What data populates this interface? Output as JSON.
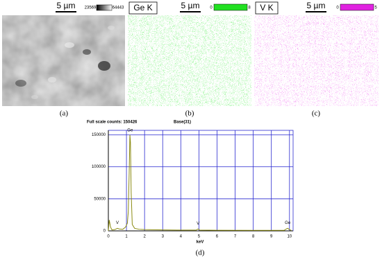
{
  "panels": [
    {
      "label": "(a)",
      "scale": "5 µm",
      "colorbar": [
        23569,
        64443
      ]
    },
    {
      "label": "(b)",
      "element": "Ge K",
      "scale": "5 µm",
      "colorbar": [
        0,
        8
      ]
    },
    {
      "label": "(c)",
      "element": "V K",
      "scale": "5 µm",
      "colorbar": [
        0,
        5
      ]
    }
  ],
  "chart_data": {
    "type": "line",
    "header_left": "Full scale counts: 150426",
    "header_right": "Base(31)",
    "x_label": "keV",
    "label": "(d)",
    "color": "#8a8a10",
    "x": [
      0,
      0.05,
      0.12,
      0.2,
      0.35,
      0.5,
      0.6,
      0.8,
      0.95,
      1.05,
      1.1,
      1.15,
      1.19,
      1.22,
      1.26,
      1.32,
      1.45,
      1.7,
      2,
      3,
      4,
      4.85,
      4.95,
      5.05,
      6,
      8,
      9.7,
      9.85,
      9.9,
      10,
      10.1
    ],
    "values": [
      0,
      17000,
      6000,
      1500,
      2000,
      4000,
      3000,
      2500,
      6000,
      12000,
      30000,
      90000,
      150000,
      138000,
      60000,
      10000,
      4000,
      2500,
      2000,
      1500,
      1200,
      1200,
      3000,
      1200,
      1000,
      800,
      800,
      3500,
      4000,
      2000,
      800
    ],
    "annotations": [
      {
        "text": "Ge",
        "x": 1.2,
        "y": 153000
      },
      {
        "text": "V",
        "x": 0.5,
        "y": 8000
      },
      {
        "text": "V",
        "x": 4.95,
        "y": 7000
      },
      {
        "text": "Ge",
        "x": 9.9,
        "y": 8000
      }
    ],
    "xlim": [
      0,
      10.2
    ],
    "ylim": [
      0,
      157000
    ],
    "xticks": [
      0,
      1,
      2,
      3,
      4,
      5,
      6,
      7,
      8,
      9,
      10
    ],
    "yticks": [
      0,
      50000,
      100000,
      150000
    ],
    "grid": true,
    "grid_color": "#2a2ad0"
  }
}
